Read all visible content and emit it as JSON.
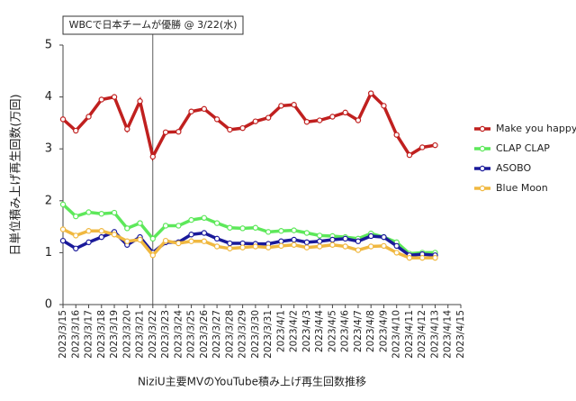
{
  "chart_data": {
    "type": "line",
    "ylabel": "日単位積み上げ再生回数(万回)",
    "xlabel": "NiziU主要MVのYouTube積み上げ再生回数推移",
    "annotation": {
      "text": "WBCで日本チームが優勝 @ 3/22(水)",
      "x": "2023/3/22"
    },
    "categories": [
      "2023/3/15",
      "2023/3/16",
      "2023/3/17",
      "2023/3/18",
      "2023/3/19",
      "2023/3/20",
      "2023/3/21",
      "2023/3/22",
      "2023/3/23",
      "2023/3/24",
      "2023/3/25",
      "2023/3/26",
      "2023/3/27",
      "2023/3/28",
      "2023/3/29",
      "2023/3/30",
      "2023/3/31",
      "2023/4/1",
      "2023/4/2",
      "2023/4/3",
      "2023/4/4",
      "2023/4/5",
      "2023/4/6",
      "2023/4/7",
      "2023/4/8",
      "2023/4/9",
      "2023/4/10",
      "2023/4/11",
      "2023/4/12",
      "2023/4/13",
      "2023/4/14",
      "2023/4/15"
    ],
    "series": [
      {
        "name": "Make you happy",
        "color": "#c0201f",
        "values": [
          3.57,
          3.35,
          3.62,
          3.95,
          4.0,
          3.38,
          3.92,
          2.85,
          3.32,
          3.33,
          3.72,
          3.77,
          3.57,
          3.37,
          3.4,
          3.53,
          3.6,
          3.83,
          3.85,
          3.52,
          3.55,
          3.62,
          3.7,
          3.55,
          4.07,
          3.83,
          3.27,
          2.88,
          3.03,
          3.07,
          null,
          null
        ]
      },
      {
        "name": "CLAP CLAP",
        "color": "#5de85a",
        "values": [
          1.93,
          1.7,
          1.78,
          1.75,
          1.77,
          1.47,
          1.57,
          1.27,
          1.52,
          1.52,
          1.63,
          1.67,
          1.57,
          1.48,
          1.47,
          1.48,
          1.4,
          1.42,
          1.43,
          1.38,
          1.33,
          1.32,
          1.3,
          1.27,
          1.37,
          1.3,
          1.2,
          0.98,
          1.0,
          1.0,
          null,
          null
        ]
      },
      {
        "name": "ASOBO",
        "color": "#1a1a9a",
        "values": [
          1.23,
          1.08,
          1.2,
          1.3,
          1.4,
          1.15,
          1.3,
          1.0,
          1.2,
          1.2,
          1.35,
          1.38,
          1.27,
          1.18,
          1.18,
          1.17,
          1.17,
          1.22,
          1.25,
          1.2,
          1.22,
          1.25,
          1.27,
          1.22,
          1.32,
          1.3,
          1.13,
          0.95,
          0.97,
          0.95,
          null,
          null
        ]
      },
      {
        "name": "Blue Moon",
        "color": "#f0b840",
        "values": [
          1.45,
          1.33,
          1.42,
          1.42,
          1.35,
          1.22,
          1.25,
          0.95,
          1.23,
          1.18,
          1.22,
          1.22,
          1.12,
          1.08,
          1.1,
          1.12,
          1.1,
          1.13,
          1.15,
          1.1,
          1.12,
          1.15,
          1.12,
          1.05,
          1.12,
          1.13,
          1.0,
          0.9,
          0.9,
          0.9,
          null,
          null
        ]
      }
    ],
    "ylim": [
      0,
      5
    ],
    "yticks": [
      0,
      1,
      2,
      3,
      4,
      5
    ],
    "grid": false,
    "legend": "right"
  }
}
